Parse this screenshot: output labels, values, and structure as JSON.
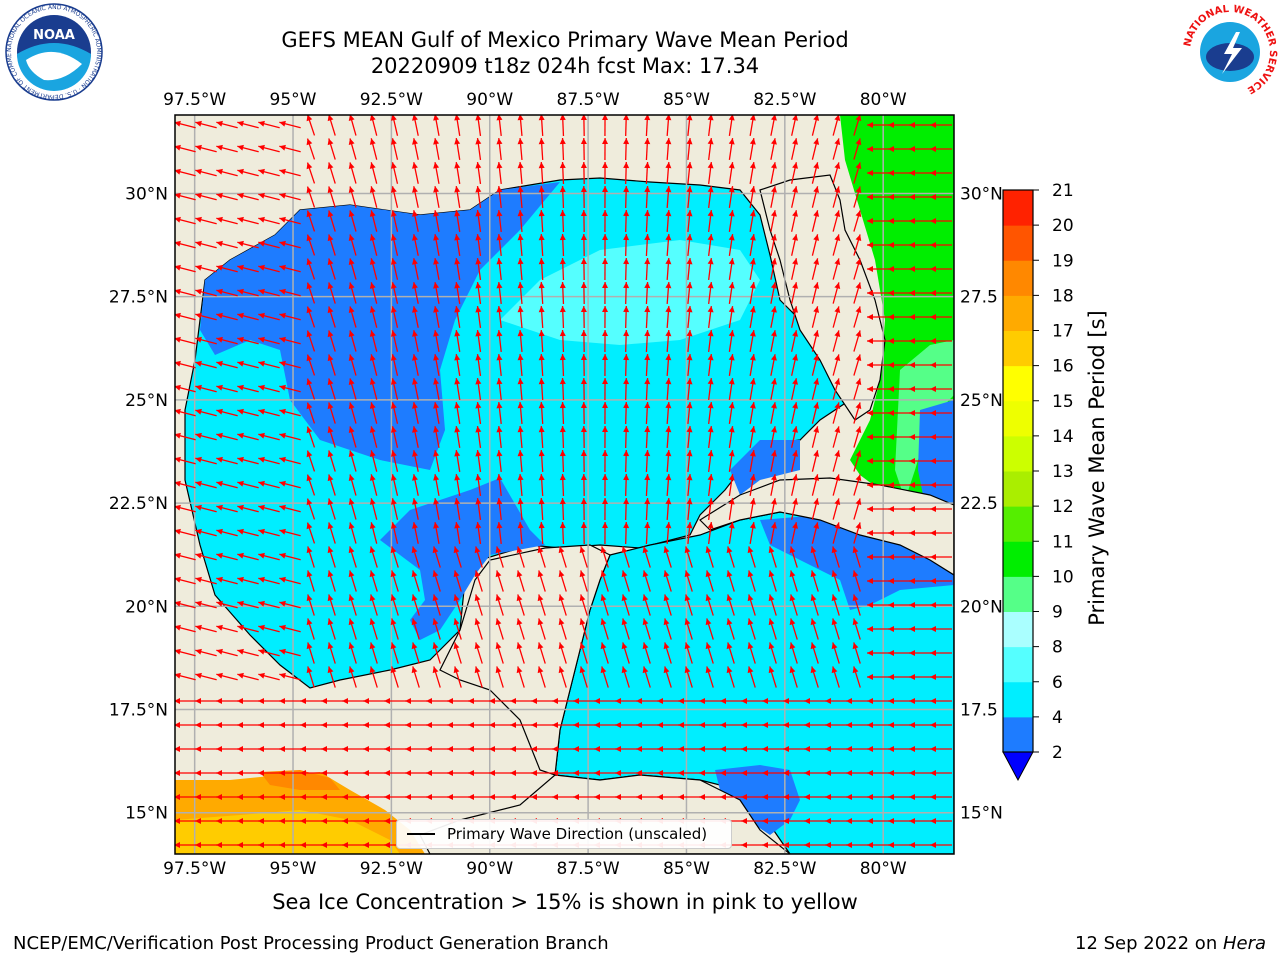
{
  "header": {
    "title_line1": "GEFS MEAN Gulf of Mexico Primary Wave Mean Period",
    "title_line2": "20220909 t18z 024h fcst   Max: 17.34"
  },
  "logos": {
    "left_text": "NOAA",
    "left_ring_text": "NATIONAL OCEANIC AND ATMOSPHERIC ADMINISTRATION · U.S. DEPARTMENT OF COMMERCE",
    "right_ring_text": "NATIONAL WEATHER SERVICE"
  },
  "axes": {
    "lon_ticks": [
      "97.5°W",
      "95°W",
      "92.5°W",
      "90°W",
      "87.5°W",
      "85°W",
      "82.5°W",
      "80°W"
    ],
    "lon_values": [
      -97.5,
      -95,
      -92.5,
      -90,
      -87.5,
      -85,
      -82.5,
      -80
    ],
    "lat_ticks_left": [
      "30°N",
      "27.5°N",
      "25°N",
      "22.5°N",
      "20°N",
      "17.5°N",
      "15°N"
    ],
    "lat_ticks_right": [
      "30°N",
      "27.5",
      "25°N",
      "22.5",
      "20°N",
      "17.5",
      "15°N"
    ],
    "lat_values": [
      30,
      27.5,
      25,
      22.5,
      20,
      17.5,
      15
    ],
    "lon_range": [
      -98,
      -78.2
    ],
    "lat_range": [
      14,
      31.9
    ],
    "grid": true
  },
  "legend": {
    "label": "Primary Wave Direction (unscaled)",
    "placement": "lower-center"
  },
  "colorbar": {
    "label": "Primary Wave Mean Period [s]",
    "ticks": [
      "2",
      "4",
      "6",
      "8",
      "9",
      "10",
      "11",
      "12",
      "13",
      "14",
      "15",
      "16",
      "17",
      "18",
      "19",
      "20",
      "21"
    ],
    "levels": [
      2,
      4,
      6,
      8,
      9,
      10,
      11,
      12,
      13,
      14,
      15,
      16,
      17,
      18,
      19,
      20,
      21
    ],
    "colors": [
      "#1e7cff",
      "#00eeff",
      "#55ffff",
      "#aaffff",
      "#55ff88",
      "#00ee00",
      "#55ee00",
      "#aaee00",
      "#ccff00",
      "#eeff00",
      "#ffff00",
      "#ffcc00",
      "#ffaa00",
      "#ff8800",
      "#ff5500",
      "#ff2200"
    ],
    "under_color": "#0000ff"
  },
  "colors": {
    "land": "#efecdc",
    "arrow": "#ff0000",
    "grid": "#b0b0b0"
  },
  "note": "Sea Ice Concentration > 15% is shown in pink to yellow",
  "footer": {
    "left": "NCEP/EMC/Verification Post Processing Product Generation Branch",
    "right_date": "12 Sep 2022 on ",
    "right_host": "Hera"
  }
}
